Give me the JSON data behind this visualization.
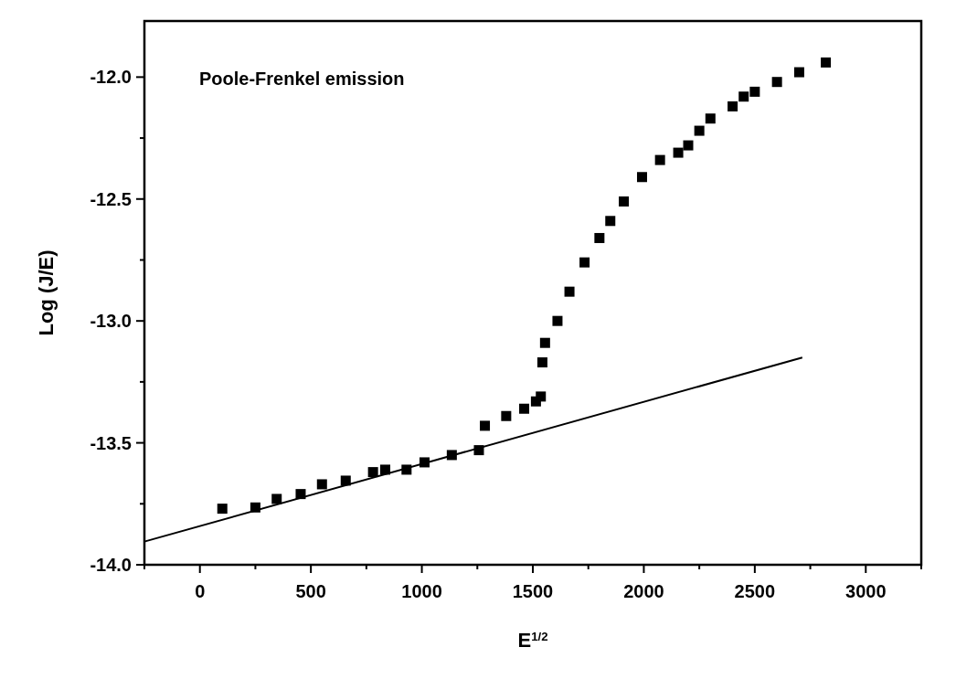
{
  "chart_data": {
    "type": "scatter",
    "xlabel": "E$^{1/2}$",
    "ylabel": "Log (J/E)",
    "annotations": [
      "Poole-Frenkel emission"
    ],
    "xlim": [
      -250,
      3250
    ],
    "ylim": [
      -14,
      -11.77
    ],
    "xticks": [
      {
        "value": -250,
        "label": null
      },
      0,
      {
        "value": 250,
        "label": null
      },
      500,
      {
        "value": 750,
        "label": null
      },
      1000,
      {
        "value": 1250,
        "label": null
      },
      1500,
      {
        "value": 1750,
        "label": null
      },
      2000,
      {
        "value": 2250,
        "label": null
      },
      2500,
      {
        "value": 2750,
        "label": null
      },
      3000,
      {
        "value": 3250,
        "label": null
      }
    ],
    "yticks": [
      {
        "value": -14,
        "label": "-14.0"
      },
      {
        "value": -13.75,
        "label": null
      },
      {
        "value": -13.5,
        "label": "-13.5"
      },
      {
        "value": -13.25,
        "label": null
      },
      {
        "value": -13,
        "label": "-13.0"
      },
      {
        "value": -12.75,
        "label": null
      },
      {
        "value": -12.5,
        "label": "-12.5"
      },
      {
        "value": -12.25,
        "label": null
      },
      {
        "value": -12,
        "label": "-12.0"
      }
    ],
    "grid": false,
    "series": [
      {
        "marker": "square",
        "color": "#000000",
        "x": [
          101,
          250,
          346,
          454,
          550,
          657,
          780,
          835,
          931,
          1012,
          1135,
          1257,
          1284,
          1380,
          1461,
          1514,
          1536,
          1543,
          1555,
          1611,
          1665,
          1733,
          1800,
          1849,
          1910,
          1992,
          2073,
          2155,
          2200,
          2250,
          2300,
          2400,
          2450,
          2500,
          2600,
          2700,
          2820
        ],
        "values": [
          -13.77,
          -13.765,
          -13.73,
          -13.71,
          -13.67,
          -13.655,
          -13.62,
          -13.61,
          -13.61,
          -13.58,
          -13.55,
          -13.53,
          -13.43,
          -13.39,
          -13.36,
          -13.33,
          -13.31,
          -13.17,
          -13.09,
          -13.0,
          -12.88,
          -12.76,
          -12.66,
          -12.59,
          -12.51,
          -12.41,
          -12.34,
          -12.31,
          -12.28,
          -12.22,
          -12.17,
          -12.12,
          -12.08,
          -12.06,
          -12.02,
          -11.98,
          -11.94
        ]
      },
      {
        "type": "line",
        "marker": "none",
        "line_style": "solid",
        "color": "#000000",
        "x": [
          -250,
          2714
        ],
        "values": [
          -13.905,
          -13.15
        ]
      }
    ]
  }
}
